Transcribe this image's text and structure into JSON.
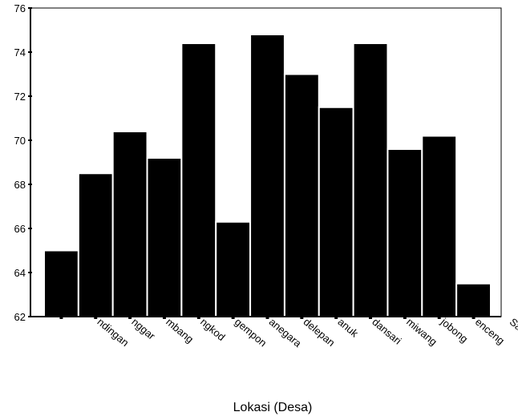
{
  "chart_data": {
    "type": "bar",
    "x_label": "Lokasi (Desa)",
    "categories": [
      "ndingan",
      "nggar",
      "mbang",
      "ngkod",
      "gempon",
      "anegara",
      "delepan",
      "anuk",
      "dansari",
      "miwang",
      "jobong",
      "enceng",
      "Sawit"
    ],
    "values": [
      65.0,
      68.5,
      70.4,
      69.2,
      74.4,
      66.3,
      74.8,
      73.0,
      71.5,
      74.4,
      69.6,
      70.2,
      63.5
    ],
    "color": "#000000",
    "ylim": [
      62,
      76
    ],
    "yticks": [
      62,
      64,
      66,
      68,
      70,
      72,
      74,
      76
    ],
    "grid": false
  }
}
